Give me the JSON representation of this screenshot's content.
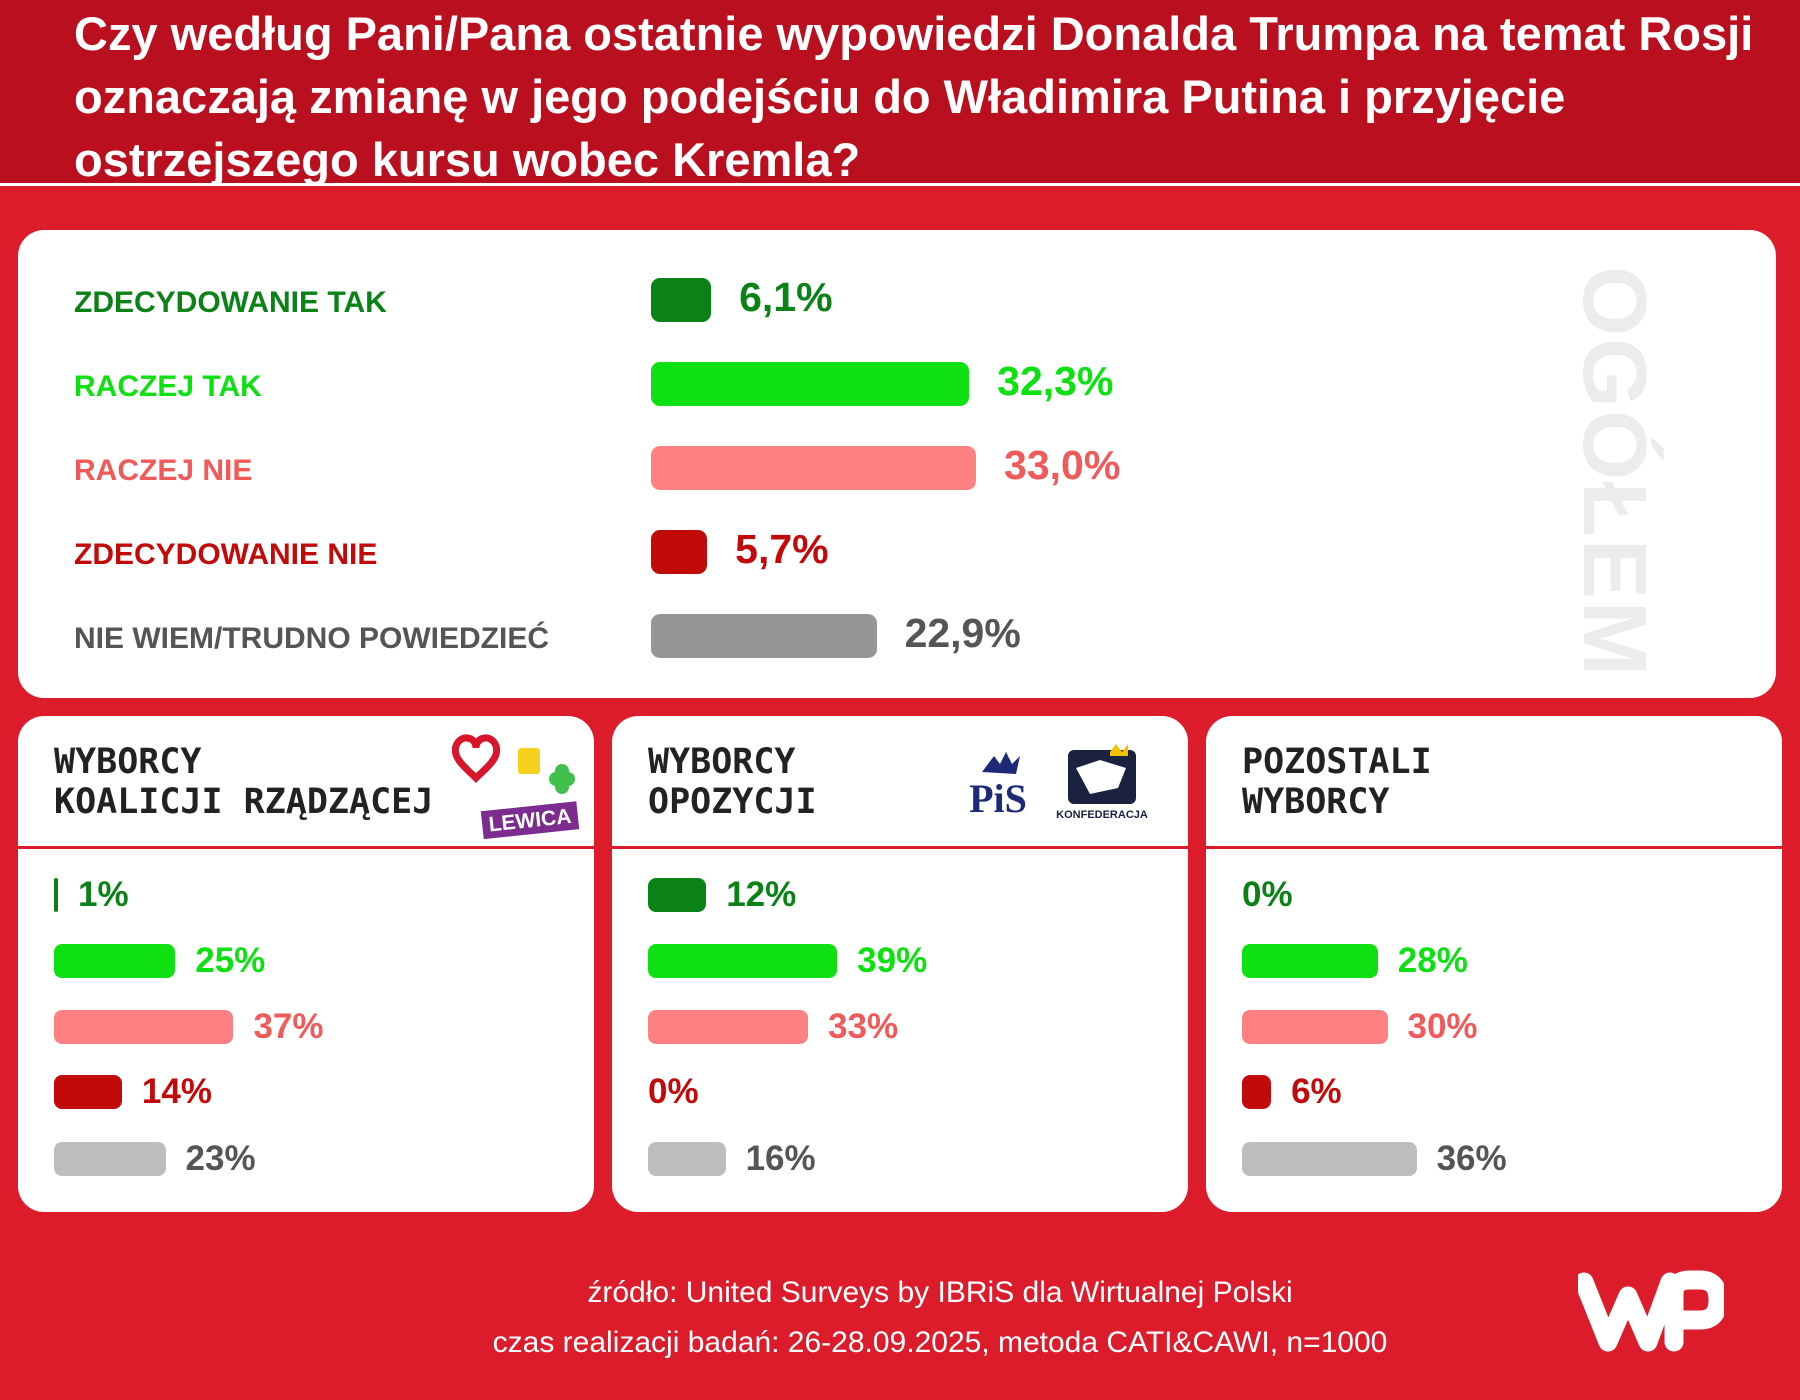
{
  "question": "Czy według Pani/Pana ostatnie wypowiedzi Donalda Trumpa na temat Rosji oznaczają zmianę w jego podejściu do Władimira Putina i przyjęcie ostrzejszego kursu wobec Kremla?",
  "colors": {
    "zdecydowanie_tak": "#0a8216",
    "raczej_tak": "#0ee011",
    "raczej_nie": "#ff8080",
    "zdecydowanie_nie": "#c20a0a",
    "nie_wiem": "#969696",
    "nie_wiem_light": "#bdbdbd",
    "nie_wiem_text": "#555555",
    "background": "#dc1b2b",
    "header": "#b90f1f"
  },
  "chart_data": [
    {
      "type": "bar",
      "orientation": "horizontal",
      "title": "OGÓŁEM",
      "categories": [
        "ZDECYDOWANIE TAK",
        "RACZEJ TAK",
        "RACZEJ NIE",
        "ZDECYDOWANIE NIE",
        "NIE WIEM/TRUDNO POWIEDZIEĆ"
      ],
      "values": [
        6.1,
        32.3,
        33.0,
        5.7,
        22.9
      ],
      "value_labels": [
        "6,1%",
        "32,3%",
        "33,0%",
        "5,7%",
        "22,9%"
      ],
      "unit": "%"
    },
    {
      "type": "bar",
      "orientation": "horizontal",
      "title": "WYBORCY\nKOALICJI RZĄDZĄCEJ",
      "logo_text": "LEWICA",
      "values": [
        1,
        25,
        37,
        14,
        23
      ],
      "value_labels": [
        "1%",
        "25%",
        "37%",
        "14%",
        "23%"
      ],
      "unit": "%"
    },
    {
      "type": "bar",
      "orientation": "horizontal",
      "title": "WYBORCY\nOPOZYCJI",
      "logo_text": [
        "PiS",
        "KONFEDERACJA"
      ],
      "values": [
        12,
        39,
        33,
        0,
        16
      ],
      "value_labels": [
        "12%",
        "39%",
        "33%",
        "0%",
        "16%"
      ],
      "unit": "%"
    },
    {
      "type": "bar",
      "orientation": "horizontal",
      "title": "POZOSTALI\nWYBORCY",
      "values": [
        0,
        28,
        30,
        6,
        36
      ],
      "value_labels": [
        "0%",
        "28%",
        "30%",
        "6%",
        "36%"
      ],
      "unit": "%"
    }
  ],
  "footer": {
    "source": "źródło: United Surveys by IBRiS dla Wirtualnej Polski",
    "meta": "czas realizacji badań: 26-28.09.2025, metoda CATI&CAWI, n=1000",
    "logo": "WP"
  }
}
